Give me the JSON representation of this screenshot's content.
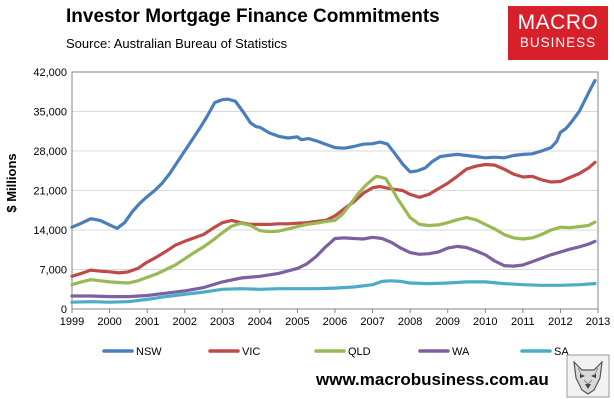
{
  "header": {
    "title": "Investor Mortgage Finance Commitments",
    "subtitle": "Source: Australian Bureau of Statistics"
  },
  "logo": {
    "line1": "MACRO",
    "line2": "BUSINESS"
  },
  "footer": {
    "website": "www.macrobusiness.com.au"
  },
  "colors": {
    "logo_bg": "#d8202a"
  },
  "chart_data": {
    "type": "line",
    "title": "Investor Mortgage Finance Commitments",
    "ylabel": "$ Millions",
    "xlabel": "",
    "ylim": [
      0,
      42000
    ],
    "xlim": [
      1999,
      2013
    ],
    "yticks": [
      0,
      7000,
      14000,
      21000,
      28000,
      35000,
      42000
    ],
    "ytick_labels": [
      "0",
      "7,000",
      "14,000",
      "21,000",
      "28,000",
      "35,000",
      "42,000"
    ],
    "xticks": [
      "1999",
      "2000",
      "2001",
      "2002",
      "2003",
      "2004",
      "2005",
      "2006",
      "2007",
      "2008",
      "2009",
      "2010",
      "2011",
      "2012",
      "2013"
    ],
    "grid": "horizontal",
    "legend": "bottom",
    "series": [
      {
        "name": "NSW",
        "color": "#4a7ebb",
        "x": [
          1999.0,
          1999.25,
          1999.5,
          1999.75,
          2000.0,
          2000.2,
          2000.4,
          2000.6,
          2000.8,
          2001.0,
          2001.2,
          2001.4,
          2001.6,
          2001.8,
          2002.0,
          2002.2,
          2002.4,
          2002.6,
          2002.8,
          2003.0,
          2003.15,
          2003.35,
          2003.55,
          2003.75,
          2003.9,
          2004.0,
          2004.25,
          2004.5,
          2004.75,
          2005.0,
          2005.1,
          2005.3,
          2005.5,
          2005.75,
          2006.0,
          2006.25,
          2006.5,
          2006.75,
          2007.0,
          2007.2,
          2007.4,
          2007.6,
          2007.8,
          2008.0,
          2008.2,
          2008.4,
          2008.6,
          2008.8,
          2009.0,
          2009.25,
          2009.5,
          2009.75,
          2010.0,
          2010.25,
          2010.5,
          2010.75,
          2011.0,
          2011.25,
          2011.5,
          2011.75,
          2011.9,
          2012.0,
          2012.15,
          2012.3,
          2012.5,
          2012.65,
          2012.8,
          2012.92
        ],
        "values": [
          14500,
          15200,
          16000,
          15700,
          14900,
          14300,
          15300,
          17200,
          18700,
          19900,
          21000,
          22300,
          24000,
          26000,
          28000,
          30000,
          32000,
          34200,
          36600,
          37100,
          37200,
          36800,
          35000,
          33000,
          32300,
          32200,
          31200,
          30600,
          30300,
          30500,
          30000,
          30200,
          29800,
          29200,
          28600,
          28500,
          28800,
          29200,
          29300,
          29600,
          29200,
          27500,
          25700,
          24300,
          24500,
          25000,
          26200,
          27000,
          27200,
          27400,
          27200,
          27000,
          26800,
          26900,
          26800,
          27200,
          27400,
          27500,
          28000,
          28600,
          29700,
          31300,
          32000,
          33200,
          35000,
          37000,
          39000,
          40500
        ]
      },
      {
        "name": "VIC",
        "color": "#be4b48",
        "x": [
          1999.0,
          1999.25,
          1999.5,
          1999.75,
          2000.0,
          2000.25,
          2000.5,
          2000.75,
          2001.0,
          2001.25,
          2001.5,
          2001.75,
          2002.0,
          2002.25,
          2002.5,
          2002.75,
          2003.0,
          2003.25,
          2003.5,
          2003.75,
          2004.0,
          2004.25,
          2004.5,
          2004.75,
          2005.0,
          2005.25,
          2005.5,
          2005.75,
          2006.0,
          2006.25,
          2006.5,
          2006.75,
          2007.0,
          2007.2,
          2007.4,
          2007.6,
          2007.8,
          2008.0,
          2008.25,
          2008.5,
          2008.75,
          2009.0,
          2009.25,
          2009.5,
          2009.75,
          2010.0,
          2010.25,
          2010.5,
          2010.75,
          2011.0,
          2011.25,
          2011.5,
          2011.75,
          2012.0,
          2012.25,
          2012.5,
          2012.75,
          2012.92
        ],
        "values": [
          5800,
          6300,
          6900,
          6700,
          6600,
          6400,
          6600,
          7200,
          8300,
          9200,
          10200,
          11300,
          12000,
          12600,
          13200,
          14300,
          15300,
          15700,
          15300,
          15000,
          15000,
          15000,
          15100,
          15100,
          15200,
          15300,
          15500,
          15700,
          16500,
          17800,
          19000,
          20500,
          21500,
          21700,
          21400,
          21200,
          21000,
          20300,
          19800,
          20300,
          21300,
          22300,
          23500,
          24800,
          25300,
          25600,
          25500,
          24800,
          23900,
          23400,
          23500,
          22900,
          22500,
          22600,
          23300,
          24000,
          25000,
          26000
        ]
      },
      {
        "name": "QLD",
        "color": "#98b954",
        "x": [
          1999.0,
          1999.25,
          1999.5,
          1999.75,
          2000.0,
          2000.25,
          2000.5,
          2000.75,
          2001.0,
          2001.25,
          2001.5,
          2001.75,
          2002.0,
          2002.25,
          2002.5,
          2002.75,
          2003.0,
          2003.25,
          2003.5,
          2003.75,
          2004.0,
          2004.25,
          2004.5,
          2004.75,
          2005.0,
          2005.25,
          2005.5,
          2005.75,
          2006.0,
          2006.2,
          2006.4,
          2006.6,
          2006.8,
          2007.0,
          2007.1,
          2007.2,
          2007.35,
          2007.5,
          2007.65,
          2007.8,
          2008.0,
          2008.25,
          2008.5,
          2008.75,
          2009.0,
          2009.25,
          2009.5,
          2009.75,
          2010.0,
          2010.25,
          2010.5,
          2010.75,
          2011.0,
          2011.25,
          2011.5,
          2011.75,
          2012.0,
          2012.25,
          2012.5,
          2012.75,
          2012.92
        ],
        "values": [
          4300,
          4800,
          5200,
          5000,
          4800,
          4700,
          4600,
          5000,
          5600,
          6200,
          7000,
          7800,
          8900,
          10000,
          11000,
          12200,
          13500,
          14700,
          15200,
          14800,
          13900,
          13700,
          13800,
          14200,
          14600,
          15000,
          15200,
          15500,
          15700,
          16800,
          18500,
          20300,
          21800,
          23000,
          23500,
          23400,
          23100,
          21500,
          19700,
          18200,
          16200,
          15000,
          14800,
          14900,
          15300,
          15800,
          16200,
          15800,
          15000,
          14200,
          13200,
          12600,
          12400,
          12600,
          13200,
          14000,
          14500,
          14400,
          14600,
          14800,
          15400
        ]
      },
      {
        "name": "WA",
        "color": "#7d60a0",
        "x": [
          1999.0,
          1999.5,
          2000.0,
          2000.5,
          2001.0,
          2001.5,
          2002.0,
          2002.5,
          2003.0,
          2003.5,
          2004.0,
          2004.5,
          2005.0,
          2005.25,
          2005.5,
          2005.75,
          2006.0,
          2006.25,
          2006.5,
          2006.75,
          2007.0,
          2007.25,
          2007.5,
          2007.75,
          2008.0,
          2008.25,
          2008.5,
          2008.75,
          2009.0,
          2009.25,
          2009.5,
          2009.75,
          2010.0,
          2010.25,
          2010.5,
          2010.75,
          2011.0,
          2011.25,
          2011.5,
          2011.75,
          2012.0,
          2012.25,
          2012.5,
          2012.75,
          2012.92
        ],
        "values": [
          2300,
          2300,
          2200,
          2200,
          2400,
          2800,
          3200,
          3800,
          4800,
          5500,
          5800,
          6300,
          7200,
          8000,
          9300,
          11000,
          12500,
          12600,
          12500,
          12400,
          12700,
          12500,
          11800,
          10800,
          10000,
          9700,
          9800,
          10100,
          10800,
          11100,
          10900,
          10300,
          9600,
          8500,
          7700,
          7600,
          7800,
          8400,
          9000,
          9600,
          10100,
          10600,
          11000,
          11500,
          12000
        ]
      },
      {
        "name": "SA",
        "color": "#4bacc6",
        "x": [
          1999.0,
          1999.5,
          2000.0,
          2000.5,
          2001.0,
          2001.5,
          2002.0,
          2002.5,
          2003.0,
          2003.5,
          2004.0,
          2004.5,
          2005.0,
          2005.5,
          2006.0,
          2006.5,
          2007.0,
          2007.25,
          2007.5,
          2007.75,
          2008.0,
          2008.5,
          2009.0,
          2009.5,
          2010.0,
          2010.5,
          2011.0,
          2011.5,
          2012.0,
          2012.5,
          2012.92
        ],
        "values": [
          1200,
          1300,
          1200,
          1300,
          1700,
          2200,
          2600,
          3000,
          3500,
          3600,
          3500,
          3600,
          3600,
          3600,
          3700,
          3900,
          4300,
          4900,
          5000,
          4900,
          4600,
          4500,
          4600,
          4800,
          4800,
          4500,
          4300,
          4200,
          4200,
          4300,
          4500
        ]
      }
    ]
  }
}
